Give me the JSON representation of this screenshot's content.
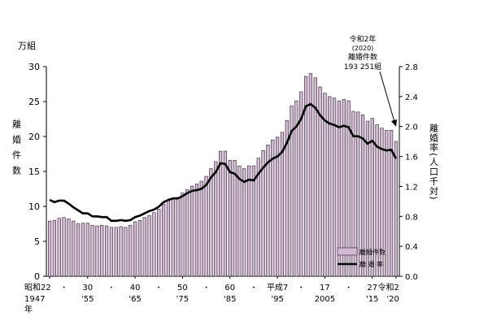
{
  "chart_data": {
    "type": "bar",
    "left_unit": "万組",
    "left_axis_label": "離婚件数",
    "right_axis_label": "離婚率(人口千対)",
    "left_ticks": [
      "0",
      "5",
      "10",
      "15",
      "20",
      "25",
      "30"
    ],
    "right_ticks": [
      "0.0",
      "0.4",
      "0.8",
      "1.2",
      "1.6",
      "2.0",
      "2.4",
      "2.8"
    ],
    "ylim_left": [
      0,
      30
    ],
    "ylim_right": [
      0,
      2.8
    ],
    "x_tick_labels_top": [
      "昭和22",
      "30",
      "40",
      "50",
      "60",
      "平成7",
      "17",
      "27",
      "令和2"
    ],
    "x_tick_labels_bottom": [
      "1947",
      "'55",
      "'65",
      "'75",
      "'85",
      "'95",
      "2005",
      "'15",
      "'20"
    ],
    "x_unit": "年",
    "dot_separator": "・",
    "legend": {
      "bars": "離婚件数",
      "line": "離 婚 率"
    },
    "annotation": [
      "令和2年",
      "(2020)",
      "離婚件数",
      "193 251組"
    ],
    "years": [
      1947,
      1948,
      1949,
      1950,
      1951,
      1952,
      1953,
      1954,
      1955,
      1956,
      1957,
      1958,
      1959,
      1960,
      1961,
      1962,
      1963,
      1964,
      1965,
      1966,
      1967,
      1968,
      1969,
      1970,
      1971,
      1972,
      1973,
      1974,
      1975,
      1976,
      1977,
      1978,
      1979,
      1980,
      1981,
      1982,
      1983,
      1984,
      1985,
      1986,
      1987,
      1988,
      1989,
      1990,
      1991,
      1992,
      1993,
      1994,
      1995,
      1996,
      1997,
      1998,
      1999,
      2000,
      2001,
      2002,
      2003,
      2004,
      2005,
      2006,
      2007,
      2008,
      2009,
      2010,
      2011,
      2012,
      2013,
      2014,
      2015,
      2016,
      2017,
      2018,
      2019,
      2020
    ],
    "series": [
      {
        "name": "離婚件数",
        "values": [
          7.9,
          8.0,
          8.3,
          8.4,
          8.2,
          7.9,
          7.5,
          7.6,
          7.6,
          7.3,
          7.2,
          7.3,
          7.2,
          7.0,
          7.0,
          7.1,
          7.0,
          7.3,
          7.8,
          8.0,
          8.4,
          8.7,
          9.1,
          9.6,
          10.3,
          10.8,
          11.2,
          11.3,
          11.9,
          12.4,
          12.9,
          13.2,
          13.6,
          14.3,
          15.4,
          16.4,
          17.9,
          17.9,
          16.6,
          16.6,
          15.8,
          15.4,
          15.8,
          15.8,
          16.9,
          18.0,
          18.8,
          19.5,
          19.9,
          20.6,
          22.3,
          24.4,
          25.1,
          26.4,
          28.6,
          29.0,
          28.4,
          27.1,
          26.2,
          25.7,
          25.5,
          25.1,
          25.3,
          25.1,
          23.6,
          23.5,
          23.1,
          22.2,
          22.6,
          21.7,
          21.2,
          20.9,
          20.9,
          19.3
        ]
      },
      {
        "name": "離 婚 率",
        "values": [
          1.02,
          0.99,
          1.01,
          1.01,
          0.97,
          0.92,
          0.88,
          0.84,
          0.84,
          0.8,
          0.8,
          0.79,
          0.79,
          0.74,
          0.74,
          0.75,
          0.74,
          0.75,
          0.79,
          0.81,
          0.84,
          0.87,
          0.89,
          0.93,
          0.99,
          1.02,
          1.04,
          1.04,
          1.07,
          1.11,
          1.14,
          1.15,
          1.17,
          1.22,
          1.32,
          1.39,
          1.51,
          1.5,
          1.39,
          1.37,
          1.3,
          1.26,
          1.29,
          1.28,
          1.37,
          1.45,
          1.52,
          1.57,
          1.6,
          1.66,
          1.78,
          1.94,
          2.0,
          2.1,
          2.27,
          2.3,
          2.25,
          2.15,
          2.08,
          2.04,
          2.02,
          1.99,
          2.01,
          1.99,
          1.87,
          1.87,
          1.84,
          1.77,
          1.81,
          1.73,
          1.7,
          1.68,
          1.69,
          1.57
        ]
      }
    ]
  }
}
